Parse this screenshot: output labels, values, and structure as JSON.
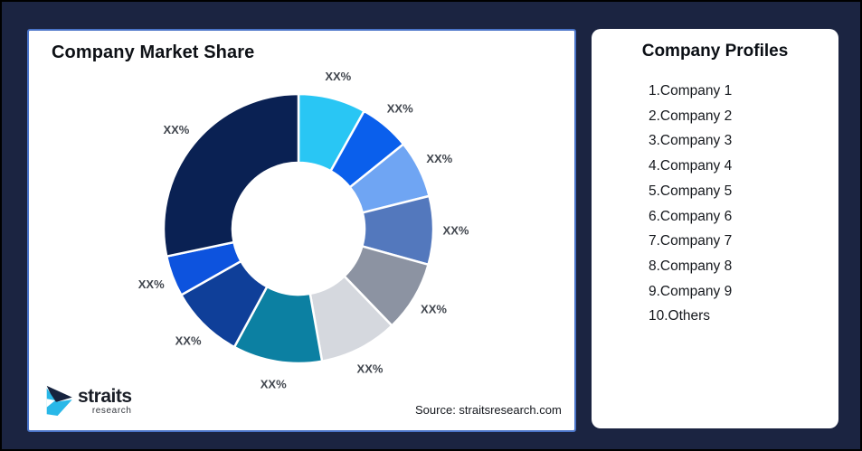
{
  "page": {
    "background_color": "#1B2441",
    "outer_border_color": "#000000"
  },
  "chart_card": {
    "title": "Company Market Share",
    "border_color": "#4A74C8",
    "source_text": "Source: straitsresearch.com",
    "logo": {
      "brand": "straits",
      "sub": "research",
      "mark_dark_color": "#16233F",
      "mark_cyan_color": "#29B8E8"
    }
  },
  "profiles_card": {
    "title": "Company Profiles",
    "items": [
      "1.Company 1",
      "2.Company 2",
      "3.Company 3",
      "4.Company 4",
      "5.Company 5",
      "6.Company 6",
      "7.Company 7",
      "8.Company 8",
      "9.Company 9",
      "10.Others"
    ]
  },
  "chart_data": {
    "type": "pie",
    "subtype": "donut",
    "title": "Company Market Share",
    "start_angle_deg": 0,
    "direction": "clockwise",
    "inner_radius_ratio": 0.49,
    "grid": false,
    "legend_position": "none",
    "data_labels_text": "XX%",
    "segments": [
      {
        "name": "Company 1",
        "label": "XX%",
        "value": 8.1,
        "color": "#29C6F4"
      },
      {
        "name": "Company 2",
        "label": "XX%",
        "value": 6.1,
        "color": "#0A5FEC"
      },
      {
        "name": "Company 3",
        "label": "XX%",
        "value": 6.9,
        "color": "#6FA5F3"
      },
      {
        "name": "Company 4",
        "label": "XX%",
        "value": 8.2,
        "color": "#5378BD"
      },
      {
        "name": "Company 5",
        "label": "XX%",
        "value": 8.5,
        "color": "#8C93A2"
      },
      {
        "name": "Company 6",
        "label": "XX%",
        "value": 9.4,
        "color": "#D5D8DE"
      },
      {
        "name": "Company 7",
        "label": "XX%",
        "value": 10.7,
        "color": "#0C80A2"
      },
      {
        "name": "Company 8",
        "label": "XX%",
        "value": 8.9,
        "color": "#0F3F99"
      },
      {
        "name": "Company 9",
        "label": "XX%",
        "value": 4.9,
        "color": "#0D53DE"
      },
      {
        "name": "Others",
        "label": "XX%",
        "value": 28.3,
        "color": "#0A2153"
      }
    ]
  }
}
